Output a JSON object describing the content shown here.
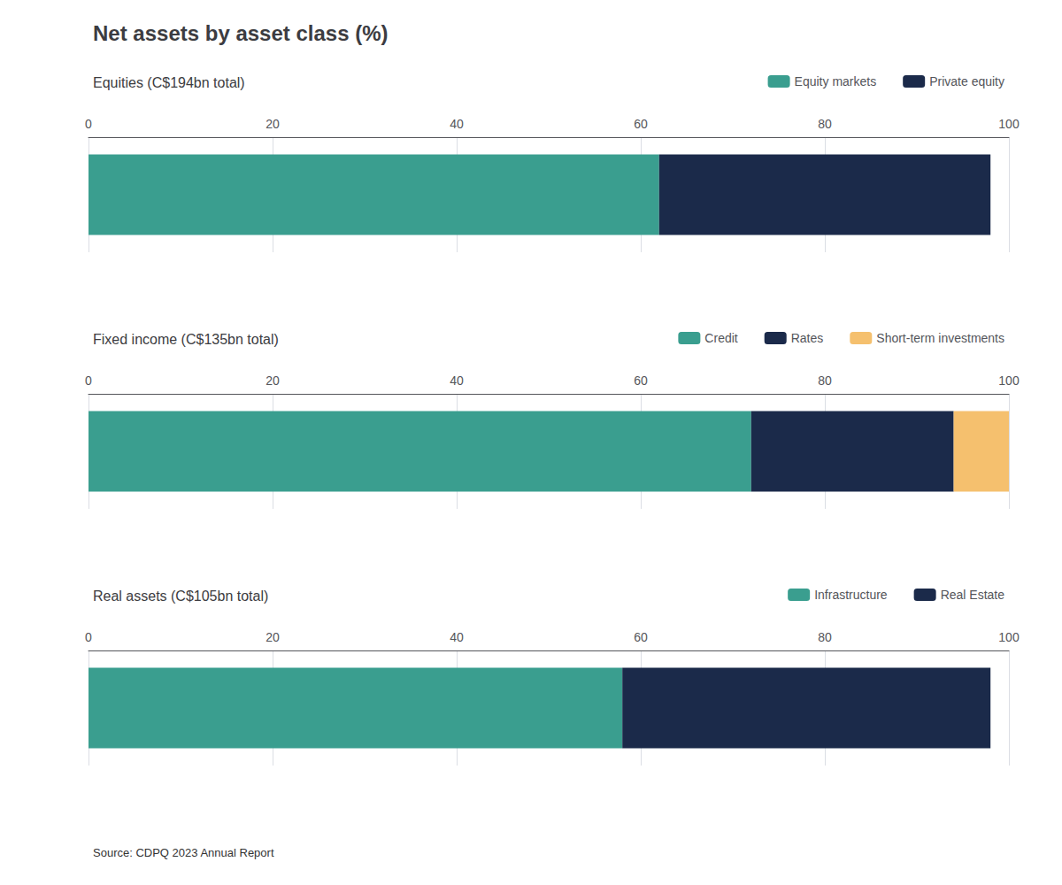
{
  "chart_data": [
    {
      "type": "bar",
      "orientation": "horizontal",
      "stacked": true,
      "title": "Net assets by asset class (%)",
      "subtitle": "Equities (C$194bn total)",
      "categories": [
        null
      ],
      "series": [
        {
          "name": "Equity markets",
          "color": "#3a9e8f",
          "values": [
            62
          ]
        },
        {
          "name": "Private equity",
          "color": "#1b2a4a",
          "values": [
            36
          ]
        }
      ],
      "xlim": [
        0,
        100
      ],
      "xticks": [
        0,
        20,
        40,
        60,
        80,
        100
      ],
      "grid": true,
      "legend": "upper right"
    },
    {
      "type": "bar",
      "orientation": "horizontal",
      "stacked": true,
      "subtitle": "Fixed income (C$135bn total)",
      "categories": [
        null
      ],
      "series": [
        {
          "name": "Credit",
          "color": "#3a9e8f",
          "values": [
            72
          ]
        },
        {
          "name": "Rates",
          "color": "#1b2a4a",
          "values": [
            22
          ]
        },
        {
          "name": "Short-term investments",
          "color": "#f5c06e",
          "values": [
            6
          ]
        }
      ],
      "xlim": [
        0,
        100
      ],
      "xticks": [
        0,
        20,
        40,
        60,
        80,
        100
      ],
      "grid": true,
      "legend": "upper right"
    },
    {
      "type": "bar",
      "orientation": "horizontal",
      "stacked": true,
      "subtitle": "Real assets (C$105bn total)",
      "categories": [
        null
      ],
      "series": [
        {
          "name": "Infrastructure",
          "color": "#3a9e8f",
          "values": [
            58
          ]
        },
        {
          "name": "Real Estate",
          "color": "#1b2a4a",
          "values": [
            40
          ]
        }
      ],
      "xlim": [
        0,
        100
      ],
      "xticks": [
        0,
        20,
        40,
        60,
        80,
        100
      ],
      "grid": true,
      "legend": "upper right",
      "annotations": [
        "Source: CDPQ 2023 Annual Report"
      ]
    }
  ]
}
